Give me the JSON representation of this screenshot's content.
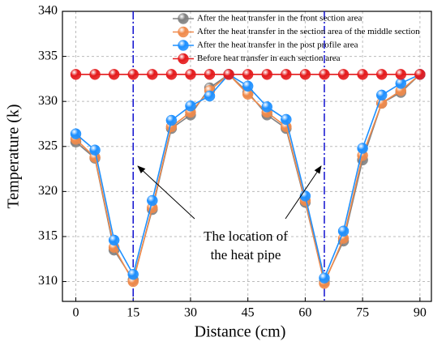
{
  "chart_data": {
    "type": "line",
    "xlabel": "Distance (cm)",
    "ylabel": "Temperature (k)",
    "x": [
      0,
      5,
      10,
      15,
      20,
      25,
      30,
      35,
      40,
      45,
      50,
      55,
      60,
      65,
      70,
      75,
      80,
      85,
      90
    ],
    "series": [
      {
        "name": "After the heat transfer in the front section area",
        "color": "#808080",
        "values": [
          325.5,
          323.7,
          313.5,
          310.2,
          318.0,
          327.0,
          328.5,
          331.5,
          333.0,
          331.0,
          328.5,
          327.0,
          318.8,
          310.0,
          314.5,
          323.5,
          329.8,
          331.0,
          333.0
        ]
      },
      {
        "name": "After the heat transfer in the section area of the middle section",
        "color": "#f08a4b",
        "values": [
          325.8,
          323.8,
          313.8,
          310.0,
          318.2,
          327.2,
          328.8,
          331.2,
          333.0,
          330.8,
          328.8,
          327.2,
          319.0,
          309.8,
          314.8,
          324.0,
          329.8,
          331.2,
          333.0
        ]
      },
      {
        "name": "After the heat transfer in the post profile area",
        "color": "#1e90ff",
        "values": [
          326.4,
          324.6,
          314.6,
          310.8,
          319.0,
          327.9,
          329.5,
          330.6,
          333.0,
          331.7,
          329.4,
          328.0,
          319.5,
          310.4,
          315.6,
          324.8,
          330.7,
          332.0,
          333.0
        ]
      },
      {
        "name": "Before heat transfer in each section area",
        "color": "#e41a1c",
        "values": [
          333,
          333,
          333,
          333,
          333,
          333,
          333,
          333,
          333,
          333,
          333,
          333,
          333,
          333,
          333,
          333,
          333,
          333,
          333
        ]
      }
    ],
    "vlines": [
      15,
      65
    ],
    "vline_color": "#1010d0",
    "annotation": [
      "The location of",
      "the heat pipe"
    ],
    "xlim": [
      -3.5,
      93
    ],
    "xticks": [
      0,
      15,
      30,
      45,
      60,
      75,
      90
    ],
    "ylim": [
      307.8,
      340
    ],
    "yticks": [
      310,
      315,
      320,
      325,
      330,
      335,
      340
    ],
    "grid": true,
    "legend": "upper right"
  }
}
